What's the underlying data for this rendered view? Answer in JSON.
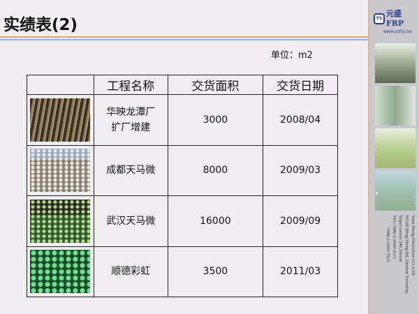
{
  "slide": {
    "title": "实绩表(2)",
    "unit": "单位：m2"
  },
  "table": {
    "headers": [
      "",
      "工程名称",
      "交货面积",
      "交货日期"
    ],
    "rows": [
      {
        "name_line1": "华映龙潭厂",
        "name_line2": "扩厂增建",
        "area": "3000",
        "date": "2008/04"
      },
      {
        "name_line1": "成都天马微",
        "name_line2": "",
        "area": "8000",
        "date": "2009/03"
      },
      {
        "name_line1": "武汉天马微",
        "name_line2": "",
        "area": "16000",
        "date": "2009/09"
      },
      {
        "name_line1": "顺德彩虹",
        "name_line2": "",
        "area": "3500",
        "date": "2011/03"
      }
    ]
  },
  "sidebar": {
    "logo_mark": "YS",
    "logo_name": "元盛FRP",
    "url": "www.ysfrp.tw",
    "address": [
      "Yuan Sheng FiberGlass CO.,LTD",
      "NO.68,Ming Sheng Rd.,Tanshan Township,",
      "Taipei county 240,Taiwan",
      "TEL:+886-2-2009-3113",
      "+886-2-2009-7923"
    ]
  },
  "colors": {
    "accent_orange": "#e0a870",
    "accent_blue": "#8fb0de",
    "brand": "#2a3c8c"
  }
}
